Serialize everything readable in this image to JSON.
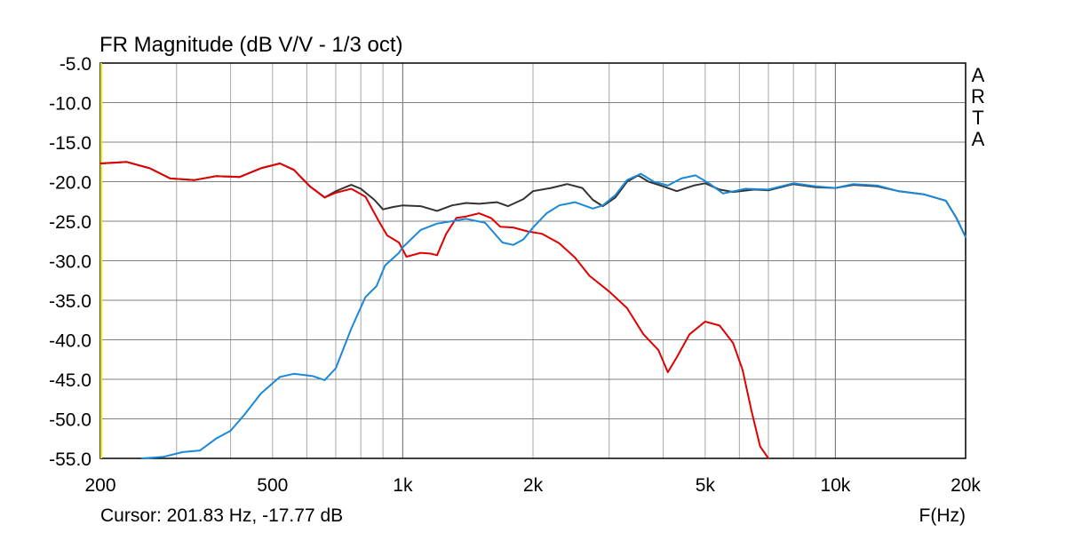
{
  "chart_data": {
    "type": "line",
    "title": "FR Magnitude (dB V/V - 1/3 oct)",
    "xlabel": "F(Hz)",
    "x_scale": "log",
    "xlim": [
      200,
      20000
    ],
    "ylim": [
      -55,
      -5
    ],
    "grid": true,
    "x_tick_labels": [
      {
        "value": 200,
        "label": "200"
      },
      {
        "value": 500,
        "label": "500"
      },
      {
        "value": 1000,
        "label": "1k"
      },
      {
        "value": 2000,
        "label": "2k"
      },
      {
        "value": 5000,
        "label": "5k"
      },
      {
        "value": 10000,
        "label": "10k"
      },
      {
        "value": 20000,
        "label": "20k"
      }
    ],
    "y_tick_labels": [
      "-5.0",
      "-10.0",
      "-15.0",
      "-20.0",
      "-25.0",
      "-30.0",
      "-35.0",
      "-40.0",
      "-45.0",
      "-50.0",
      "-55.0"
    ],
    "watermark": [
      "A",
      "R",
      "T",
      "A"
    ],
    "cursor_text": "Cursor: 201.83 Hz, -17.77 dB",
    "colors": {
      "series_black": "#333333",
      "series_red": "#e00000",
      "series_blue": "#1a88d8",
      "cursor": "#e8e800",
      "grid": "#a8a8a8"
    },
    "series": [
      {
        "color": "#333333",
        "points": [
          [
            200,
            -17.7
          ],
          [
            230,
            -17.5
          ],
          [
            260,
            -18.3
          ],
          [
            290,
            -19.6
          ],
          [
            330,
            -19.8
          ],
          [
            370,
            -19.3
          ],
          [
            420,
            -19.4
          ],
          [
            470,
            -18.3
          ],
          [
            520,
            -17.7
          ],
          [
            560,
            -18.5
          ],
          [
            610,
            -20.6
          ],
          [
            660,
            -22.0
          ],
          [
            700,
            -21.2
          ],
          [
            760,
            -20.4
          ],
          [
            800,
            -20.9
          ],
          [
            860,
            -22.3
          ],
          [
            900,
            -23.5
          ],
          [
            950,
            -23.2
          ],
          [
            1000,
            -23.0
          ],
          [
            1100,
            -23.1
          ],
          [
            1200,
            -23.7
          ],
          [
            1300,
            -23.0
          ],
          [
            1400,
            -22.7
          ],
          [
            1500,
            -22.8
          ],
          [
            1650,
            -22.6
          ],
          [
            1750,
            -23.1
          ],
          [
            1900,
            -22.2
          ],
          [
            2000,
            -21.2
          ],
          [
            2200,
            -20.8
          ],
          [
            2400,
            -20.3
          ],
          [
            2600,
            -20.8
          ],
          [
            2750,
            -22.3
          ],
          [
            2900,
            -23.1
          ],
          [
            3100,
            -22.0
          ],
          [
            3300,
            -20.0
          ],
          [
            3500,
            -19.2
          ],
          [
            3700,
            -20.0
          ],
          [
            4000,
            -20.6
          ],
          [
            4300,
            -21.2
          ],
          [
            4700,
            -20.5
          ],
          [
            5000,
            -20.2
          ],
          [
            5400,
            -21.0
          ],
          [
            5800,
            -21.3
          ],
          [
            6500,
            -21.0
          ],
          [
            7000,
            -21.1
          ],
          [
            8000,
            -20.3
          ],
          [
            9000,
            -20.7
          ],
          [
            10000,
            -20.8
          ],
          [
            11000,
            -20.4
          ],
          [
            12500,
            -20.6
          ],
          [
            14000,
            -21.2
          ],
          [
            16000,
            -21.6
          ],
          [
            18000,
            -22.4
          ],
          [
            19000,
            -24.5
          ],
          [
            20000,
            -27.0
          ]
        ]
      },
      {
        "color": "#e00000",
        "points": [
          [
            200,
            -17.7
          ],
          [
            230,
            -17.5
          ],
          [
            260,
            -18.3
          ],
          [
            290,
            -19.6
          ],
          [
            330,
            -19.8
          ],
          [
            370,
            -19.3
          ],
          [
            420,
            -19.4
          ],
          [
            470,
            -18.3
          ],
          [
            520,
            -17.7
          ],
          [
            560,
            -18.5
          ],
          [
            610,
            -20.6
          ],
          [
            660,
            -22.0
          ],
          [
            700,
            -21.4
          ],
          [
            760,
            -20.9
          ],
          [
            820,
            -21.9
          ],
          [
            880,
            -25.0
          ],
          [
            920,
            -26.8
          ],
          [
            980,
            -27.7
          ],
          [
            1020,
            -29.5
          ],
          [
            1100,
            -29.0
          ],
          [
            1160,
            -29.1
          ],
          [
            1200,
            -29.3
          ],
          [
            1260,
            -26.6
          ],
          [
            1330,
            -24.6
          ],
          [
            1400,
            -24.4
          ],
          [
            1500,
            -24.0
          ],
          [
            1600,
            -24.6
          ],
          [
            1680,
            -25.7
          ],
          [
            1800,
            -25.8
          ],
          [
            1950,
            -26.3
          ],
          [
            2100,
            -26.6
          ],
          [
            2300,
            -27.8
          ],
          [
            2500,
            -29.6
          ],
          [
            2700,
            -31.9
          ],
          [
            3000,
            -33.9
          ],
          [
            3300,
            -36.0
          ],
          [
            3600,
            -39.3
          ],
          [
            3900,
            -41.3
          ],
          [
            4100,
            -44.1
          ],
          [
            4300,
            -42.2
          ],
          [
            4600,
            -39.3
          ],
          [
            5000,
            -37.7
          ],
          [
            5400,
            -38.2
          ],
          [
            5800,
            -40.4
          ],
          [
            6100,
            -43.8
          ],
          [
            6400,
            -49.0
          ],
          [
            6700,
            -53.5
          ],
          [
            7000,
            -55.0
          ]
        ]
      },
      {
        "color": "#1a88d8",
        "points": [
          [
            250,
            -55.0
          ],
          [
            280,
            -54.8
          ],
          [
            310,
            -54.2
          ],
          [
            340,
            -54.0
          ],
          [
            370,
            -52.5
          ],
          [
            400,
            -51.5
          ],
          [
            430,
            -49.5
          ],
          [
            470,
            -46.8
          ],
          [
            520,
            -44.7
          ],
          [
            560,
            -44.3
          ],
          [
            620,
            -44.6
          ],
          [
            660,
            -45.1
          ],
          [
            700,
            -43.6
          ],
          [
            760,
            -38.6
          ],
          [
            820,
            -34.6
          ],
          [
            870,
            -33.2
          ],
          [
            910,
            -30.6
          ],
          [
            980,
            -29.0
          ],
          [
            1000,
            -28.3
          ],
          [
            1100,
            -26.1
          ],
          [
            1200,
            -25.3
          ],
          [
            1300,
            -25.0
          ],
          [
            1400,
            -24.7
          ],
          [
            1550,
            -25.2
          ],
          [
            1700,
            -27.7
          ],
          [
            1800,
            -28.0
          ],
          [
            1900,
            -27.3
          ],
          [
            2000,
            -25.8
          ],
          [
            2150,
            -24.0
          ],
          [
            2300,
            -23.0
          ],
          [
            2500,
            -22.6
          ],
          [
            2750,
            -23.4
          ],
          [
            2900,
            -23.0
          ],
          [
            3100,
            -21.7
          ],
          [
            3300,
            -19.8
          ],
          [
            3550,
            -19.0
          ],
          [
            3800,
            -20.0
          ],
          [
            4100,
            -20.5
          ],
          [
            4400,
            -19.6
          ],
          [
            4750,
            -19.2
          ],
          [
            5100,
            -20.2
          ],
          [
            5500,
            -21.5
          ],
          [
            6200,
            -20.9
          ],
          [
            7000,
            -21.0
          ],
          [
            8000,
            -20.2
          ],
          [
            9000,
            -20.6
          ],
          [
            10000,
            -20.8
          ],
          [
            11000,
            -20.3
          ],
          [
            12500,
            -20.5
          ],
          [
            14000,
            -21.2
          ],
          [
            16000,
            -21.6
          ],
          [
            18000,
            -22.4
          ],
          [
            19000,
            -24.5
          ],
          [
            20000,
            -27.0
          ]
        ]
      }
    ]
  }
}
